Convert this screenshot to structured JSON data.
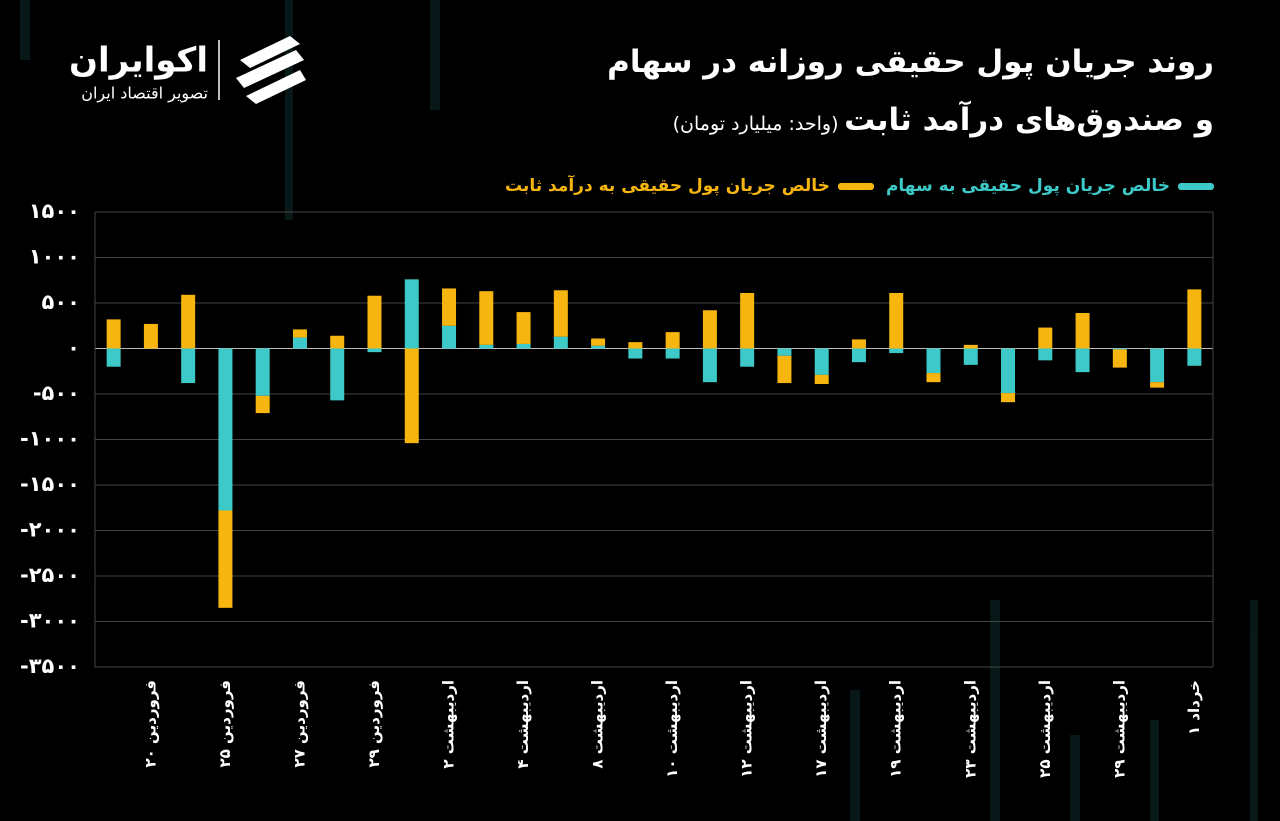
{
  "logo": {
    "name": "اکوایران",
    "tagline": "تصویر اقتصاد ایران"
  },
  "chart_data": {
    "type": "stacked-bar",
    "title": [
      "روند جریان پول حقیقی روزانه در سهام",
      "و صندوق‌های درآمد ثابت"
    ],
    "subtitle": "(واحد: میلیارد تومان)",
    "categories": [
      null,
      "۲۰ فروردین",
      null,
      "۲۵ فروردین",
      null,
      "۲۷ فروردین",
      null,
      "۲۹ فروردین",
      null,
      "۲ اردیبهشت",
      null,
      "۴ اردیبهشت",
      null,
      "۸ اردیبهشت",
      null,
      "۱۰ اردیبهشت",
      null,
      "۱۲ اردیبهشت",
      null,
      "۱۷ اردیبهشت",
      null,
      "۱۹ اردیبهشت",
      null,
      "۲۳ اردیبهشت",
      null,
      "۲۵ اردیبهشت",
      null,
      "۲۹ اردیبهشت",
      null,
      "۱ خرداد"
    ],
    "series": [
      {
        "name": "خالص جریان پول حقیقی به سهام",
        "color": "#3ec9c9",
        "values": [
          -200,
          0,
          -380,
          -1780,
          -520,
          120,
          -570,
          -40,
          760,
          250,
          40,
          50,
          130,
          30,
          -110,
          -110,
          -370,
          -200,
          -80,
          -290,
          -150,
          -50,
          -270,
          -180,
          -490,
          -130,
          -260,
          -10,
          -370,
          -190
        ]
      },
      {
        "name": "خالص جریان پول حقیقی به درآمد ثابت",
        "color": "#f6b50f",
        "values": [
          320,
          270,
          590,
          -1070,
          -190,
          90,
          140,
          580,
          -1040,
          410,
          590,
          350,
          510,
          80,
          70,
          180,
          420,
          610,
          -300,
          -100,
          100,
          610,
          -100,
          40,
          -100,
          230,
          390,
          -200,
          -60,
          650
        ]
      }
    ],
    "ylim": [
      -3500,
      1500
    ],
    "yticks": [
      {
        "value": 1500,
        "label": "۱۵۰۰"
      },
      {
        "value": 1000,
        "label": "۱۰۰۰"
      },
      {
        "value": 500,
        "label": "۵۰۰"
      },
      {
        "value": 0,
        "label": "۰"
      },
      {
        "value": -500,
        "label": "-۵۰۰"
      },
      {
        "value": -1000,
        "label": "-۱۰۰۰"
      },
      {
        "value": -1500,
        "label": "-۱۵۰۰"
      },
      {
        "value": -2000,
        "label": "-۲۰۰۰"
      },
      {
        "value": -2500,
        "label": "-۲۵۰۰"
      },
      {
        "value": -3000,
        "label": "-۳۰۰۰"
      },
      {
        "value": -3500,
        "label": "-۳۵۰۰"
      }
    ],
    "grid": true
  }
}
